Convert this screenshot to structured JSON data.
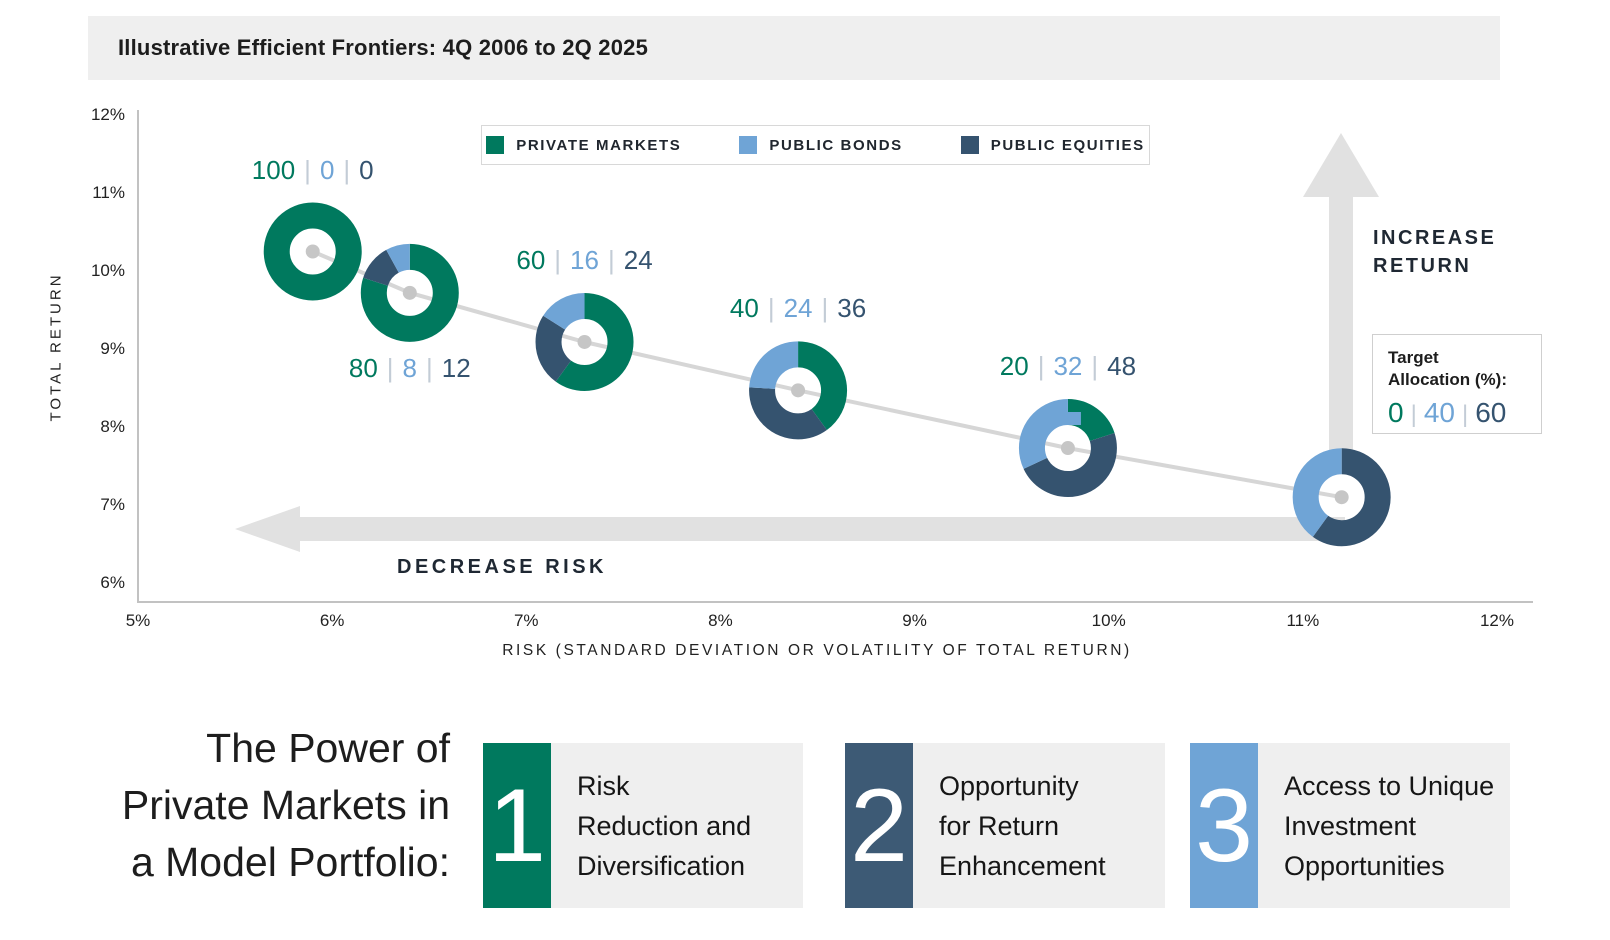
{
  "title_bar": {
    "title": "Illustrative Efficient Frontiers: 4Q 2006 to 2Q 2025"
  },
  "colors": {
    "private_markets_green": "#00795E",
    "public_bonds_blue": "#6FA4D6",
    "public_equities_navy": "#35536F",
    "card2_navy": "#3D5A75",
    "arrow_gray": "#E1E1E1",
    "frontier_line_gray": "#D6D6D6",
    "dot_gray": "#C6C6C6",
    "separator_gray": "#C3CCD6",
    "panel_gray": "#EFEFEF"
  },
  "legend": {
    "items": [
      {
        "label": "PRIVATE MARKETS",
        "color": "#00795E"
      },
      {
        "label": "PUBLIC BONDS",
        "color": "#6FA4D6"
      },
      {
        "label": "PUBLIC EQUITIES",
        "color": "#35536F"
      }
    ]
  },
  "axes": {
    "y_label": "TOTAL RETURN",
    "x_label": "RISK (STANDARD DEVIATION OR VOLATILITY OF TOTAL RETURN)",
    "y_ticks": [
      "12%",
      "11%",
      "10%",
      "9%",
      "8%",
      "7%",
      "6%"
    ],
    "x_ticks": [
      "5%",
      "6%",
      "7%",
      "8%",
      "9%",
      "10%",
      "11%",
      "12%"
    ]
  },
  "annotations": {
    "increase_line1": "INCREASE",
    "increase_line2": "RETURN",
    "decrease": "DECREASE RISK"
  },
  "target_allocation": {
    "label_line1": "Target",
    "label_line2": "Allocation (%):",
    "values": [
      0,
      40,
      60
    ]
  },
  "chart_data": {
    "type": "scatter",
    "subtype": "donut-markers-on-efficient-frontier",
    "title": "Illustrative Efficient Frontiers: 4Q 2006 to 2Q 2025",
    "xlabel": "RISK (STANDARD DEVIATION OR VOLATILITY OF TOTAL RETURN)",
    "ylabel": "TOTAL RETURN",
    "xlim": [
      5,
      12
    ],
    "ylim": [
      6,
      12
    ],
    "grid": false,
    "legend_position": "top-center",
    "allocation_order": [
      "PRIVATE MARKETS",
      "PUBLIC BONDS",
      "PUBLIC EQUITIES"
    ],
    "points": [
      {
        "risk": 5.9,
        "return": 10.25,
        "allocation": [
          100,
          0,
          0
        ],
        "label": "100 | 0 | 0",
        "label_position": "above"
      },
      {
        "risk": 6.4,
        "return": 9.72,
        "allocation": [
          80,
          8,
          12
        ],
        "label": "80 | 8 | 12",
        "label_position": "below"
      },
      {
        "risk": 7.3,
        "return": 9.09,
        "allocation": [
          60,
          16,
          24
        ],
        "label": "60 | 16 | 24",
        "label_position": "above"
      },
      {
        "risk": 8.4,
        "return": 8.47,
        "allocation": [
          40,
          24,
          36
        ],
        "label": "40 | 24 | 36",
        "label_position": "above"
      },
      {
        "risk": 9.79,
        "return": 7.73,
        "allocation": [
          20,
          32,
          48
        ],
        "label": "20 | 32 | 48",
        "label_position": "above"
      },
      {
        "risk": 11.2,
        "return": 7.1,
        "allocation": [
          0,
          40,
          60
        ],
        "label": "",
        "label_position": "none"
      }
    ]
  },
  "footer": {
    "heading_lines": [
      "The Power of",
      "Private Markets in",
      "a Model Portfolio:"
    ],
    "cards": [
      {
        "number": "1",
        "color": "#00795E",
        "lines": [
          "Risk",
          "Reduction and",
          "Diversification"
        ]
      },
      {
        "number": "2",
        "color": "#3D5A75",
        "lines": [
          "Opportunity",
          "for Return",
          "Enhancement"
        ]
      },
      {
        "number": "3",
        "color": "#6FA4D6",
        "lines": [
          "Access to Unique",
          "Investment",
          "Opportunities"
        ]
      }
    ]
  }
}
